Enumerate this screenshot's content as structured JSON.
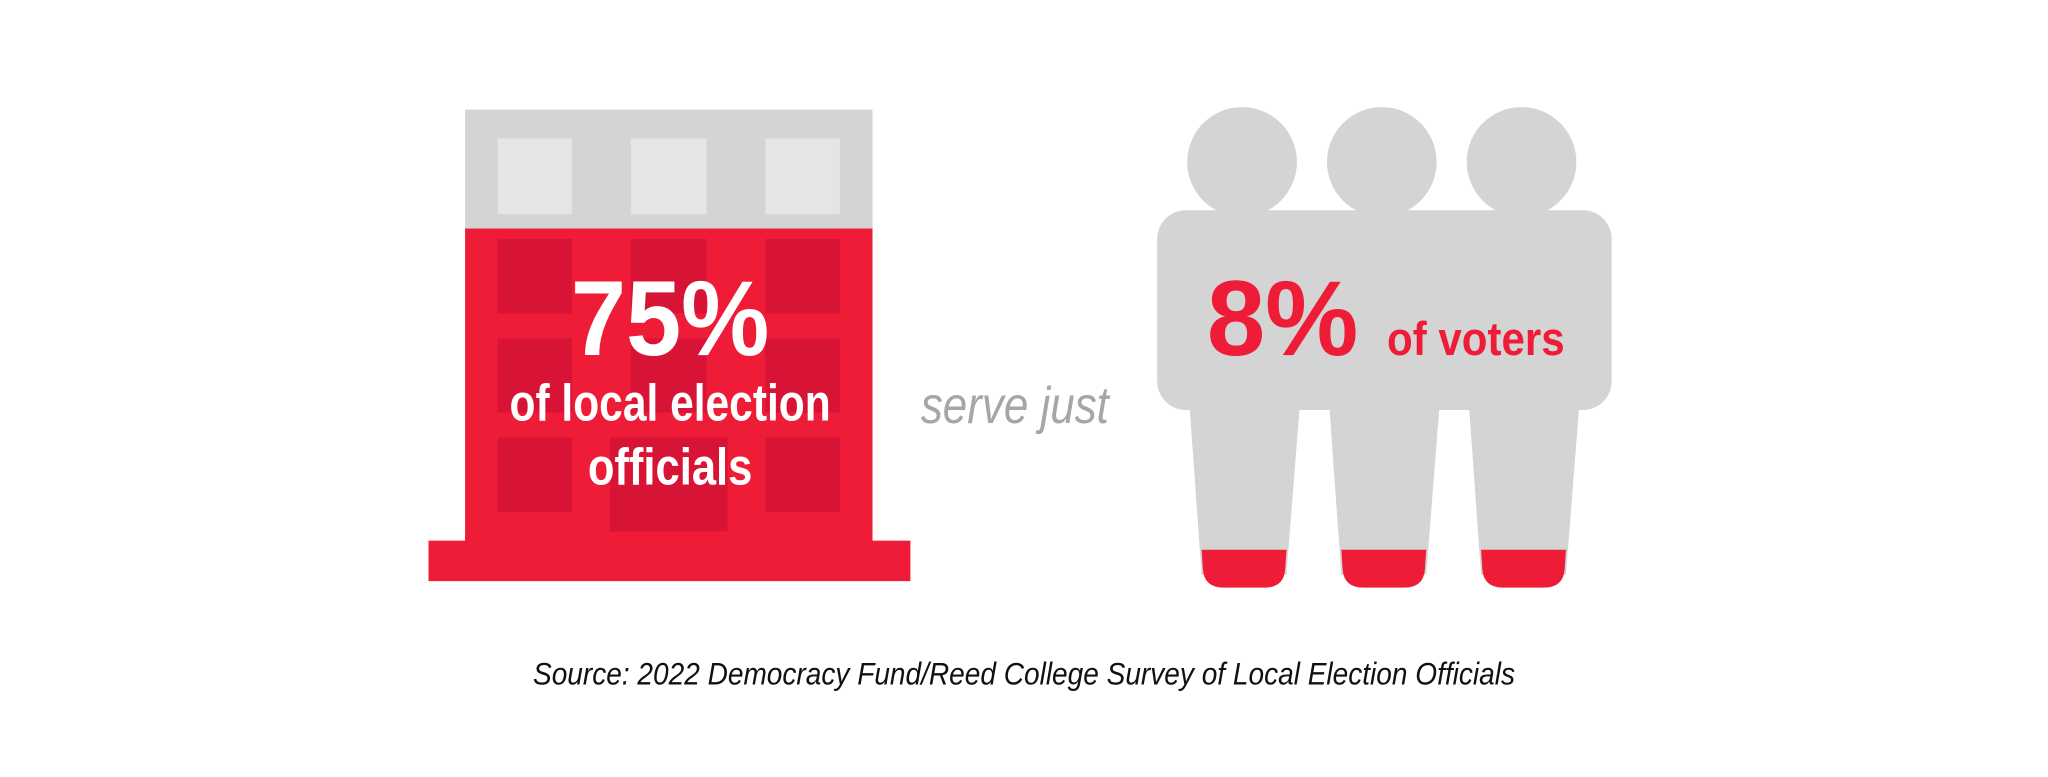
{
  "left": {
    "value": "75%",
    "label_lines": [
      "of local election",
      "officials"
    ]
  },
  "connector": "serve just",
  "right": {
    "value": "8%",
    "label": "of voters"
  },
  "source": "Source: 2022 Democracy Fund/Reed College Survey of Local Election Officials"
}
